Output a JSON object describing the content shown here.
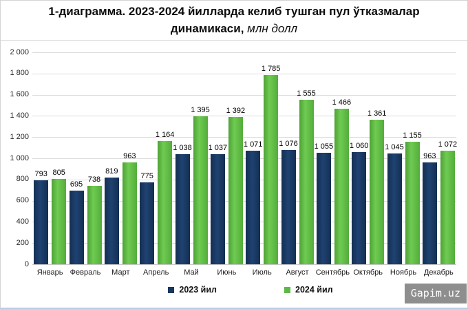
{
  "title": {
    "line1": "1-диаграмма. 2023-2024 йилларда келиб тушган пул ўтказмалар",
    "line2_bold": "динамикаси,",
    "line2_italic": " млн долл"
  },
  "legend": [
    {
      "label": "2023 йил",
      "color": "#17375d"
    },
    {
      "label": "2024 йил",
      "color": "#5cb947"
    }
  ],
  "watermark": "Gapim.uz",
  "colors": {
    "bar_2023": "#17375d",
    "bar_2024": "#5cb947",
    "gridline": "#dcdcdc",
    "bottom_accent": "#b9cde5"
  },
  "chart_data": {
    "type": "bar",
    "title": "1-диаграмма. 2023-2024 йилларда келиб тушган пул ўтказмалар динамикаси, млн долл",
    "categories": [
      "Январь",
      "Февраль",
      "Март",
      "Апрель",
      "Май",
      "Июнь",
      "Июль",
      "Август",
      "Сентябрь",
      "Октябрь",
      "Ноябрь",
      "Декабрь"
    ],
    "series": [
      {
        "name": "2023 йил",
        "color": "#17375d",
        "values": [
          793,
          695,
          819,
          775,
          1038,
          1037,
          1071,
          1076,
          1055,
          1060,
          1045,
          963
        ]
      },
      {
        "name": "2024 йил",
        "color": "#5cb947",
        "values": [
          805,
          738,
          963,
          1164,
          1395,
          1392,
          1785,
          1555,
          1466,
          1361,
          1155,
          1072
        ]
      }
    ],
    "xlabel": "",
    "ylabel": "",
    "ylim": [
      0,
      2000
    ],
    "y_tick_step": 200,
    "y_tick_labels": [
      "0",
      "200",
      "400",
      "600",
      "800",
      "1 000",
      "1 200",
      "1 400",
      "1 600",
      "1 800",
      "2 000"
    ],
    "grid": true,
    "data_labels": true,
    "legend_position": "bottom"
  }
}
